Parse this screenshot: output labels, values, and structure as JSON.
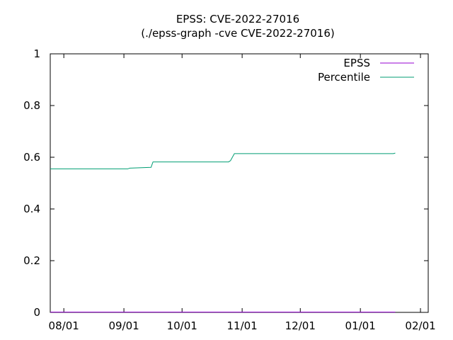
{
  "chart_data": {
    "type": "line",
    "title": "EPSS: CVE-2022-27016",
    "subtitle": "(./epss-graph -cve CVE-2022-27016)",
    "xlabel": "",
    "ylabel": "",
    "ylim": [
      0,
      1
    ],
    "xlim": [
      "2022-07-25",
      "2023-02-05"
    ],
    "y_ticks": [
      "0",
      "0.2",
      "0.4",
      "0.6",
      "0.8",
      "1"
    ],
    "y_tick_values": [
      0,
      0.2,
      0.4,
      0.6,
      0.8,
      1
    ],
    "x_ticks": [
      "08/01",
      "09/01",
      "10/01",
      "11/01",
      "12/01",
      "01/01",
      "02/01"
    ],
    "x_tick_values": [
      "2022-08-01",
      "2022-09-01",
      "2022-10-01",
      "2022-11-01",
      "2022-12-01",
      "2023-01-01",
      "2023-02-01"
    ],
    "grid": false,
    "legend_position": "top-right",
    "series": [
      {
        "name": "EPSS",
        "color": "#9400d3",
        "points": [
          [
            "2022-07-25",
            0.001
          ],
          [
            "2023-01-19",
            0.001
          ]
        ]
      },
      {
        "name": "Percentile",
        "color": "#009e73",
        "points": [
          [
            "2022-07-25",
            0.555
          ],
          [
            "2022-09-03",
            0.555
          ],
          [
            "2022-09-04",
            0.558
          ],
          [
            "2022-09-15",
            0.561
          ],
          [
            "2022-09-16",
            0.582
          ],
          [
            "2022-10-25",
            0.582
          ],
          [
            "2022-10-26",
            0.587
          ],
          [
            "2022-10-28",
            0.614
          ],
          [
            "2023-01-18",
            0.614
          ],
          [
            "2023-01-19",
            0.616
          ]
        ]
      }
    ]
  }
}
